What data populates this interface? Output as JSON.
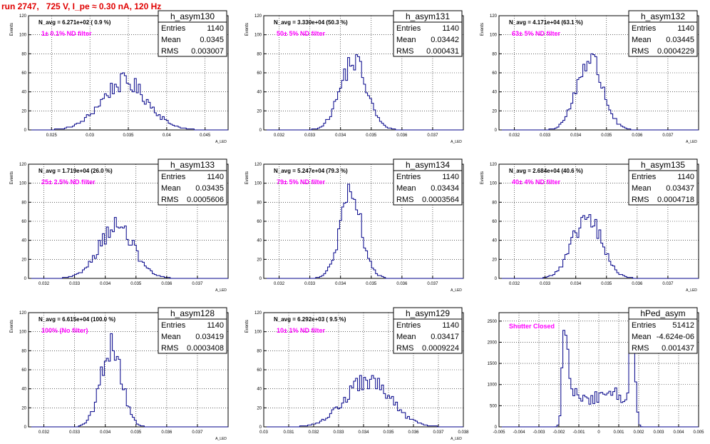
{
  "title": "run 2747,   725 V, I_pe ≈ 0.30 nA, 120 Hz",
  "chart_data": [
    {
      "type": "histogram",
      "name": "h_asym130",
      "navg": "N_avg = 6.271e+02 ( 0.9 %)",
      "filter": "1± 0.1% ND filter",
      "stats": {
        "Entries": "1140",
        "Mean": "0.0345",
        "RMS": "0.003007"
      },
      "xlim": [
        0.022,
        0.048
      ],
      "ylim": [
        0,
        120
      ],
      "xticks": [
        0.025,
        0.03,
        0.035,
        0.04,
        0.045
      ],
      "xtick_labels": [
        "0.025",
        "0.03",
        "0.035",
        "0.04",
        "0.045"
      ],
      "yticks": [
        0,
        20,
        40,
        60,
        80,
        100,
        120
      ],
      "ylabel": "Events",
      "xlabel": "A_LED",
      "mean": 0.0345,
      "rms": 0.003007,
      "peak": 50,
      "entries": 1140
    },
    {
      "type": "histogram",
      "name": "h_asym131",
      "navg": "N_avg = 3.330e+04 (50.3 %)",
      "filter": "50± 5% ND filter",
      "stats": {
        "Entries": "1140",
        "Mean": "0.03442",
        "RMS": "0.000431"
      },
      "xlim": [
        0.0315,
        0.038
      ],
      "ylim": [
        0,
        120
      ],
      "xticks": [
        0.032,
        0.033,
        0.034,
        0.035,
        0.036,
        0.037
      ],
      "xtick_labels": [
        "0.032",
        "0.033",
        "0.034",
        "0.035",
        "0.036",
        "0.037"
      ],
      "yticks": [
        0,
        20,
        40,
        60,
        80,
        100,
        120
      ],
      "ylabel": "Events",
      "xlabel": "A_LED",
      "mean": 0.03442,
      "rms": 0.000431,
      "peak": 72,
      "entries": 1140
    },
    {
      "type": "histogram",
      "name": "h_asym132",
      "navg": "N_avg = 4.171e+04 (63.1 %)",
      "filter": "63± 5% ND filter",
      "stats": {
        "Entries": "1140",
        "Mean": "0.03445",
        "RMS": "0.0004229"
      },
      "xlim": [
        0.0315,
        0.038
      ],
      "ylim": [
        0,
        120
      ],
      "xticks": [
        0.032,
        0.033,
        0.034,
        0.035,
        0.036,
        0.037
      ],
      "xtick_labels": [
        "0.032",
        "0.033",
        "0.034",
        "0.035",
        "0.036",
        "0.037"
      ],
      "yticks": [
        0,
        20,
        40,
        60,
        80,
        100,
        120
      ],
      "ylabel": "Events",
      "xlabel": "A_LED",
      "mean": 0.03445,
      "rms": 0.0004229,
      "peak": 75,
      "entries": 1140
    },
    {
      "type": "histogram",
      "name": "h_asym133",
      "navg": "N_avg = 1.719e+04 (26.0 %)",
      "filter": "25± 2.5% ND filter",
      "stats": {
        "Entries": "1140",
        "Mean": "0.03435",
        "RMS": "0.0005606"
      },
      "xlim": [
        0.0315,
        0.038
      ],
      "ylim": [
        0,
        120
      ],
      "xticks": [
        0.032,
        0.033,
        0.034,
        0.035,
        0.036,
        0.037
      ],
      "xtick_labels": [
        "0.032",
        "0.033",
        "0.034",
        "0.035",
        "0.036",
        "0.037"
      ],
      "yticks": [
        0,
        20,
        40,
        60,
        80,
        100,
        120
      ],
      "ylabel": "Events",
      "xlabel": "A_LED",
      "mean": 0.03435,
      "rms": 0.0005606,
      "peak": 55,
      "entries": 1140
    },
    {
      "type": "histogram",
      "name": "h_asym134",
      "navg": "N_avg = 5.247e+04 (79.3 %)",
      "filter": "79± 5% ND filter",
      "stats": {
        "Entries": "1140",
        "Mean": "0.03434",
        "RMS": "0.0003564"
      },
      "xlim": [
        0.0315,
        0.038
      ],
      "ylim": [
        0,
        120
      ],
      "xticks": [
        0.032,
        0.033,
        0.034,
        0.035,
        0.036,
        0.037
      ],
      "xtick_labels": [
        "0.032",
        "0.033",
        "0.034",
        "0.035",
        "0.036",
        "0.037"
      ],
      "yticks": [
        0,
        20,
        40,
        60,
        80,
        100,
        120
      ],
      "ylabel": "Events",
      "xlabel": "A_LED",
      "mean": 0.03434,
      "rms": 0.0003564,
      "peak": 85,
      "entries": 1140
    },
    {
      "type": "histogram",
      "name": "h_asym135",
      "navg": "N_avg = 2.684e+04 (40.6 %)",
      "filter": "40± 4% ND filter",
      "stats": {
        "Entries": "1140",
        "Mean": "0.03437",
        "RMS": "0.0004718"
      },
      "xlim": [
        0.0315,
        0.038
      ],
      "ylim": [
        0,
        120
      ],
      "xticks": [
        0.032,
        0.033,
        0.034,
        0.035,
        0.036,
        0.037
      ],
      "xtick_labels": [
        "0.032",
        "0.033",
        "0.034",
        "0.035",
        "0.036",
        "0.037"
      ],
      "yticks": [
        0,
        20,
        40,
        60,
        80,
        100,
        120
      ],
      "ylabel": "Events",
      "xlabel": "A_LED",
      "mean": 0.03437,
      "rms": 0.0004718,
      "peak": 63,
      "entries": 1140
    },
    {
      "type": "histogram",
      "name": "h_asym128",
      "navg": "N_avg = 6.615e+04 (100.0 %)",
      "filter": "100% (No filter)",
      "stats": {
        "Entries": "1140",
        "Mean": "0.03419",
        "RMS": "0.0003408"
      },
      "xlim": [
        0.0315,
        0.038
      ],
      "ylim": [
        0,
        120
      ],
      "xticks": [
        0.032,
        0.033,
        0.034,
        0.035,
        0.036,
        0.037
      ],
      "xtick_labels": [
        "0.032",
        "0.033",
        "0.034",
        "0.035",
        "0.036",
        "0.037"
      ],
      "yticks": [
        0,
        20,
        40,
        60,
        80,
        100,
        120
      ],
      "ylabel": "Events",
      "xlabel": "A_LED",
      "mean": 0.03419,
      "rms": 0.0003408,
      "peak": 85,
      "entries": 1140
    },
    {
      "type": "histogram",
      "name": "h_asym129",
      "navg": "N_avg = 6.292e+03 ( 9.5 %)",
      "filter": "10± 1% ND filter",
      "stats": {
        "Entries": "1140",
        "Mean": "0.03417",
        "RMS": "0.0009224"
      },
      "xlim": [
        0.03,
        0.038
      ],
      "ylim": [
        0,
        120
      ],
      "xticks": [
        0.03,
        0.031,
        0.032,
        0.033,
        0.034,
        0.035,
        0.036,
        0.037,
        0.038
      ],
      "xtick_labels": [
        "0.03",
        "0.031",
        "0.032",
        "0.033",
        "0.034",
        "0.035",
        "0.036",
        "0.037",
        "0.038"
      ],
      "yticks": [
        0,
        20,
        40,
        60,
        80,
        100,
        120
      ],
      "ylabel": "Events",
      "xlabel": "A_LED",
      "mean": 0.03417,
      "rms": 0.0009224,
      "peak": 48,
      "entries": 1140
    },
    {
      "type": "histogram",
      "name": "hPed_asym",
      "navg": "",
      "filter": "Shutter Closed",
      "stats": {
        "Entries": "51412",
        "Mean": "-4.624e-06",
        "RMS": "0.001437"
      },
      "xlim": [
        -0.005,
        0.005
      ],
      "ylim": [
        0,
        2700
      ],
      "xticks": [
        -0.005,
        -0.004,
        -0.003,
        -0.002,
        -0.001,
        0,
        0.001,
        0.002,
        0.003,
        0.004,
        0.005
      ],
      "xtick_labels": [
        "-0.005",
        "-0.004",
        "-0.003",
        "-0.002",
        "-0.001",
        "0",
        "0.001",
        "0.002",
        "0.003",
        "0.004",
        "0.005"
      ],
      "yticks": [
        0,
        500,
        1000,
        1500,
        2000,
        2500
      ],
      "ylabel": "",
      "xlabel": "",
      "mean": 0,
      "rms": 0.001437,
      "peak": 2650,
      "entries": 51412,
      "pedestal": true
    }
  ]
}
